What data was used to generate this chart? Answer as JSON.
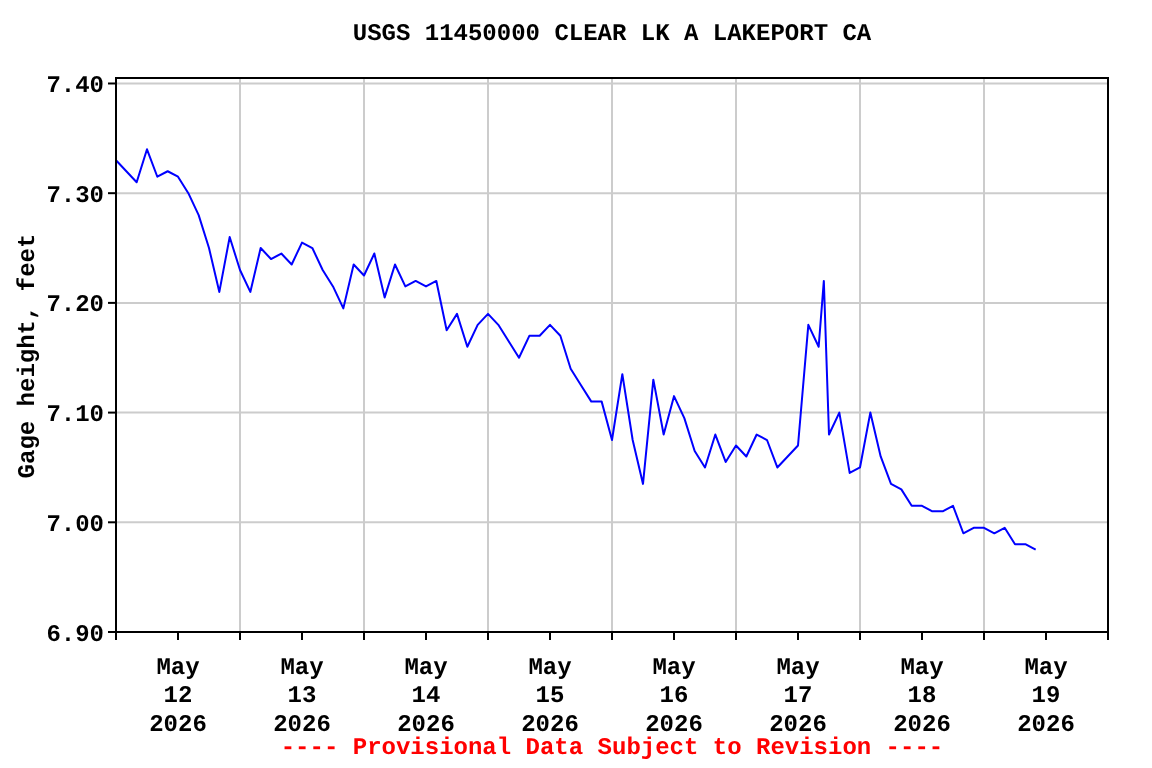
{
  "chart_data": {
    "type": "line",
    "title": "USGS 11450000 CLEAR LK A LAKEPORT CA",
    "ylabel": "Gage height, feet",
    "annotations": [
      "---- Provisional Data Subject to Revision ----"
    ],
    "x": [
      "2026-05-12T00:00",
      "2026-05-12T02:00",
      "2026-05-12T04:00",
      "2026-05-12T06:00",
      "2026-05-12T08:00",
      "2026-05-12T10:00",
      "2026-05-12T12:00",
      "2026-05-12T14:00",
      "2026-05-12T16:00",
      "2026-05-12T18:00",
      "2026-05-12T20:00",
      "2026-05-12T22:00",
      "2026-05-13T00:00",
      "2026-05-13T02:00",
      "2026-05-13T04:00",
      "2026-05-13T06:00",
      "2026-05-13T08:00",
      "2026-05-13T10:00",
      "2026-05-13T12:00",
      "2026-05-13T14:00",
      "2026-05-13T16:00",
      "2026-05-13T18:00",
      "2026-05-13T20:00",
      "2026-05-13T22:00",
      "2026-05-14T00:00",
      "2026-05-14T02:00",
      "2026-05-14T04:00",
      "2026-05-14T06:00",
      "2026-05-14T08:00",
      "2026-05-14T10:00",
      "2026-05-14T12:00",
      "2026-05-14T14:00",
      "2026-05-14T16:00",
      "2026-05-14T18:00",
      "2026-05-14T20:00",
      "2026-05-14T22:00",
      "2026-05-15T00:00",
      "2026-05-15T02:00",
      "2026-05-15T04:00",
      "2026-05-15T06:00",
      "2026-05-15T08:00",
      "2026-05-15T10:00",
      "2026-05-15T12:00",
      "2026-05-15T14:00",
      "2026-05-15T16:00",
      "2026-05-15T18:00",
      "2026-05-15T20:00",
      "2026-05-15T22:00",
      "2026-05-16T00:00",
      "2026-05-16T02:00",
      "2026-05-16T04:00",
      "2026-05-16T06:00",
      "2026-05-16T08:00",
      "2026-05-16T10:00",
      "2026-05-16T12:00",
      "2026-05-16T14:00",
      "2026-05-16T16:00",
      "2026-05-16T18:00",
      "2026-05-16T20:00",
      "2026-05-16T22:00",
      "2026-05-17T00:00",
      "2026-05-17T02:00",
      "2026-05-17T04:00",
      "2026-05-17T06:00",
      "2026-05-17T08:00",
      "2026-05-17T10:00",
      "2026-05-17T12:00",
      "2026-05-17T14:00",
      "2026-05-17T16:00",
      "2026-05-17T17:00",
      "2026-05-17T18:00",
      "2026-05-17T20:00",
      "2026-05-17T22:00",
      "2026-05-18T00:00",
      "2026-05-18T02:00",
      "2026-05-18T04:00",
      "2026-05-18T06:00",
      "2026-05-18T08:00",
      "2026-05-18T10:00",
      "2026-05-18T12:00",
      "2026-05-18T14:00",
      "2026-05-18T16:00",
      "2026-05-18T18:00",
      "2026-05-18T20:00",
      "2026-05-18T22:00",
      "2026-05-19T00:00",
      "2026-05-19T02:00",
      "2026-05-19T04:00",
      "2026-05-19T06:00",
      "2026-05-19T08:00",
      "2026-05-19T10:00"
    ],
    "series": [
      {
        "color": "#0000ff",
        "values": [
          7.33,
          7.32,
          7.31,
          7.34,
          7.315,
          7.32,
          7.315,
          7.3,
          7.28,
          7.25,
          7.21,
          7.26,
          7.23,
          7.21,
          7.25,
          7.24,
          7.245,
          7.235,
          7.255,
          7.25,
          7.23,
          7.215,
          7.195,
          7.235,
          7.225,
          7.245,
          7.205,
          7.235,
          7.215,
          7.22,
          7.215,
          7.22,
          7.175,
          7.19,
          7.16,
          7.18,
          7.19,
          7.18,
          7.165,
          7.15,
          7.17,
          7.17,
          7.18,
          7.17,
          7.14,
          7.125,
          7.11,
          7.11,
          7.075,
          7.135,
          7.075,
          7.035,
          7.13,
          7.08,
          7.115,
          7.095,
          7.065,
          7.05,
          7.08,
          7.055,
          7.07,
          7.06,
          7.08,
          7.075,
          7.05,
          7.06,
          7.07,
          7.18,
          7.16,
          7.22,
          7.08,
          7.1,
          7.045,
          7.05,
          7.1,
          7.06,
          7.035,
          7.03,
          7.015,
          7.015,
          7.01,
          7.01,
          7.015,
          6.99,
          6.995,
          6.995,
          6.99,
          6.995,
          6.98,
          6.98,
          6.975
        ]
      }
    ],
    "xlim": [
      "2026-05-12T00:00",
      "2026-05-20T00:00"
    ],
    "xticks": [
      {
        "value": "2026-05-12T00:00",
        "label": null
      },
      {
        "value": "2026-05-12T12:00",
        "label": "May 12 2026"
      },
      {
        "value": "2026-05-13T00:00",
        "label": null
      },
      {
        "value": "2026-05-13T12:00",
        "label": "May 13 2026"
      },
      {
        "value": "2026-05-14T00:00",
        "label": null
      },
      {
        "value": "2026-05-14T12:00",
        "label": "May 14 2026"
      },
      {
        "value": "2026-05-15T00:00",
        "label": null
      },
      {
        "value": "2026-05-15T12:00",
        "label": "May 15 2026"
      },
      {
        "value": "2026-05-16T00:00",
        "label": null
      },
      {
        "value": "2026-05-16T12:00",
        "label": "May 16 2026"
      },
      {
        "value": "2026-05-17T00:00",
        "label": null
      },
      {
        "value": "2026-05-17T12:00",
        "label": "May 17 2026"
      },
      {
        "value": "2026-05-18T00:00",
        "label": null
      },
      {
        "value": "2026-05-18T12:00",
        "label": "May 18 2026"
      },
      {
        "value": "2026-05-19T00:00",
        "label": null
      },
      {
        "value": "2026-05-19T12:00",
        "label": "May 19 2026"
      },
      {
        "value": "2026-05-20T00:00",
        "label": null
      }
    ],
    "ylim": [
      6.9,
      7.405
    ],
    "yticks": [
      {
        "value": 6.9,
        "label": "6.90"
      },
      {
        "value": 7.0,
        "label": "7.00"
      },
      {
        "value": 7.1,
        "label": "7.10"
      },
      {
        "value": 7.2,
        "label": "7.20"
      },
      {
        "value": 7.3,
        "label": "7.30"
      },
      {
        "value": 7.4,
        "label": "7.40"
      }
    ],
    "grid": true,
    "legend": false,
    "marker": "none",
    "line_style": "solid"
  }
}
